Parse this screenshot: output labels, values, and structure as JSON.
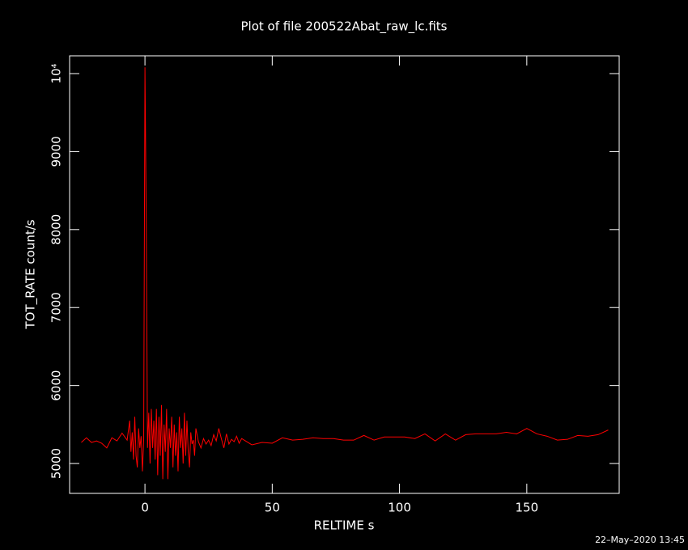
{
  "chart_data": {
    "type": "line",
    "title": "Plot of file 200522Abat_raw_lc.fits",
    "x_label": "RELTIME  s",
    "y_label": "TOT_RATE  count/s",
    "footer": "22–May–2020 13:45",
    "color": "#ff0000",
    "x": [
      -25,
      -23,
      -21,
      -19,
      -17,
      -15,
      -13,
      -11,
      -9,
      -7,
      -6,
      -5.5,
      -5,
      -4.5,
      -4,
      -3.5,
      -3,
      -2.5,
      -2,
      -1.5,
      -1,
      -0.5,
      0,
      0.5,
      1,
      1.5,
      2,
      2.5,
      3,
      3.5,
      4,
      4.5,
      5,
      5.5,
      6,
      6.5,
      7,
      7.5,
      8,
      8.5,
      9,
      9.5,
      10,
      10.5,
      11,
      11.5,
      12,
      12.5,
      13,
      13.5,
      14,
      14.5,
      15,
      15.5,
      16,
      16.5,
      17,
      17.5,
      18,
      18.5,
      19,
      19.5,
      20,
      21,
      22,
      23,
      24,
      25,
      26,
      27,
      28,
      29,
      30,
      31,
      32,
      33,
      34,
      35,
      36,
      37,
      38,
      39,
      42,
      46,
      50,
      54,
      58,
      62,
      66,
      70,
      74,
      78,
      82,
      86,
      90,
      94,
      98,
      102,
      106,
      110,
      114,
      118,
      122,
      126,
      130,
      134,
      138,
      142,
      146,
      150,
      154,
      158,
      162,
      166,
      170,
      174,
      178,
      182
    ],
    "values": [
      5270,
      5330,
      5270,
      5290,
      5260,
      5200,
      5330,
      5290,
      5390,
      5300,
      5550,
      5150,
      5400,
      5050,
      5600,
      5100,
      4950,
      5450,
      5200,
      5350,
      4900,
      5300,
      10080,
      8150,
      5200,
      5650,
      5000,
      5700,
      5200,
      5550,
      5050,
      5700,
      4850,
      5600,
      5100,
      5750,
      4800,
      5500,
      5150,
      5700,
      4800,
      5450,
      5200,
      5600,
      4950,
      5500,
      5100,
      5400,
      4900,
      5600,
      5200,
      5450,
      5000,
      5650,
      5100,
      5550,
      5150,
      4950,
      5400,
      5250,
      5300,
      5100,
      5450,
      5280,
      5200,
      5320,
      5250,
      5300,
      5230,
      5370,
      5290,
      5450,
      5320,
      5200,
      5380,
      5250,
      5310,
      5280,
      5350,
      5260,
      5320,
      5300,
      5240,
      5270,
      5260,
      5330,
      5300,
      5310,
      5330,
      5320,
      5320,
      5300,
      5300,
      5360,
      5300,
      5340,
      5340,
      5340,
      5320,
      5380,
      5290,
      5380,
      5300,
      5370,
      5380,
      5380,
      5380,
      5400,
      5380,
      5450,
      5380,
      5350,
      5300,
      5310,
      5360,
      5350,
      5370,
      5430
    ],
    "xlim": [
      -29.6,
      186.3
    ],
    "ylim": [
      4617,
      10228
    ],
    "xticks": [
      0,
      50,
      100,
      150
    ],
    "yticks": [
      5000,
      6000,
      7000,
      8000,
      9000,
      {
        "value": 10000,
        "label": "10⁴"
      }
    ]
  }
}
